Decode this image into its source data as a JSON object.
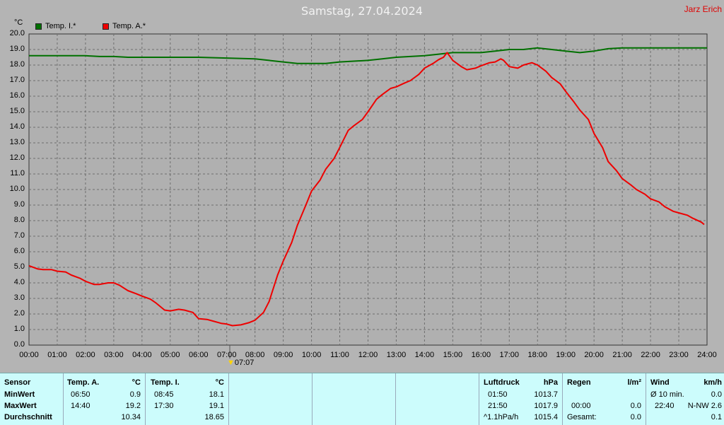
{
  "title": "Samstag, 27.04.2024",
  "author": "Jarz Erich",
  "legend": [
    {
      "label": "Temp. I.*",
      "color": "#007000"
    },
    {
      "label": "Temp. A.*",
      "color": "#ee0000"
    }
  ],
  "sunrise": {
    "time": "07:07"
  },
  "chart_data": {
    "type": "line",
    "title": "Samstag, 27.04.2024",
    "ylabel": "°C",
    "xlabel": "",
    "ylim": [
      0,
      20
    ],
    "xlim_hours": [
      0,
      24
    ],
    "grid": true,
    "y_ticks": [
      "0.0",
      "1.0",
      "2.0",
      "3.0",
      "4.0",
      "5.0",
      "6.0",
      "7.0",
      "8.0",
      "9.0",
      "10.0",
      "11.0",
      "12.0",
      "13.0",
      "14.0",
      "15.0",
      "16.0",
      "17.0",
      "18.0",
      "19.0",
      "20.0"
    ],
    "x_ticks": [
      "00:00",
      "01:00",
      "02:00",
      "03:00",
      "04:00",
      "05:00",
      "06:00",
      "07:00",
      "08:00",
      "09:00",
      "10:00",
      "11:00",
      "12:00",
      "13:00",
      "14:00",
      "15:00",
      "16:00",
      "17:00",
      "18:00",
      "19:00",
      "20:00",
      "21:00",
      "22:00",
      "23:00",
      "24:00"
    ],
    "series": [
      {
        "name": "Temp. I.*",
        "color": "#007000",
        "x": [
          0,
          2,
          2.5,
          3,
          3.5,
          4,
          5,
          6,
          7,
          8,
          8.5,
          9,
          9.5,
          10,
          10.5,
          11,
          12,
          12.5,
          13,
          14,
          14.5,
          15,
          15.5,
          16,
          16.5,
          17,
          17.5,
          18,
          18.5,
          19,
          19.5,
          20,
          20.5,
          21,
          22,
          23,
          24
        ],
        "y": [
          18.6,
          18.6,
          18.55,
          18.55,
          18.5,
          18.5,
          18.5,
          18.5,
          18.45,
          18.4,
          18.3,
          18.2,
          18.1,
          18.1,
          18.1,
          18.2,
          18.3,
          18.4,
          18.5,
          18.6,
          18.7,
          18.8,
          18.8,
          18.8,
          18.9,
          19.0,
          19.0,
          19.1,
          19.0,
          18.9,
          18.8,
          18.9,
          19.05,
          19.1,
          19.1,
          19.1,
          19.1
        ]
      },
      {
        "name": "Temp. A.*",
        "color": "#ee0000",
        "x": [
          0,
          0.3,
          0.5,
          0.8,
          1,
          1.3,
          1.5,
          1.8,
          2,
          2.3,
          2.5,
          2.8,
          3,
          3.2,
          3.5,
          3.8,
          4,
          4.3,
          4.5,
          4.8,
          5,
          5.3,
          5.5,
          5.8,
          6,
          6.3,
          6.5,
          6.8,
          7,
          7.2,
          7.5,
          7.8,
          8,
          8.3,
          8.5,
          8.8,
          9,
          9.3,
          9.5,
          9.8,
          10,
          10.3,
          10.5,
          10.8,
          11,
          11.3,
          11.5,
          11.8,
          12,
          12.3,
          12.5,
          12.8,
          13,
          13.3,
          13.5,
          13.8,
          14,
          14.3,
          14.5,
          14.67,
          14.8,
          15,
          15.3,
          15.5,
          15.8,
          16,
          16.3,
          16.5,
          16.7,
          16.8,
          17,
          17.3,
          17.5,
          17.8,
          18,
          18.3,
          18.5,
          18.8,
          19,
          19.3,
          19.5,
          19.8,
          20,
          20.3,
          20.5,
          20.8,
          21,
          21.3,
          21.5,
          21.8,
          22,
          22.3,
          22.5,
          22.8,
          23,
          23.3,
          23.5,
          23.8,
          23.9
        ],
        "y": [
          5.1,
          4.9,
          4.85,
          4.85,
          4.75,
          4.7,
          4.5,
          4.3,
          4.1,
          3.9,
          3.9,
          4.0,
          4.0,
          3.85,
          3.5,
          3.3,
          3.15,
          2.95,
          2.7,
          2.25,
          2.2,
          2.3,
          2.25,
          2.1,
          1.7,
          1.65,
          1.55,
          1.4,
          1.35,
          1.25,
          1.3,
          1.45,
          1.6,
          2.1,
          2.8,
          4.5,
          5.4,
          6.6,
          7.7,
          9.0,
          9.9,
          10.6,
          11.3,
          12.0,
          12.7,
          13.8,
          14.1,
          14.5,
          15.0,
          15.8,
          16.1,
          16.5,
          16.6,
          16.85,
          17.0,
          17.4,
          17.8,
          18.1,
          18.35,
          18.5,
          18.8,
          18.3,
          17.9,
          17.7,
          17.8,
          17.95,
          18.15,
          18.2,
          18.4,
          18.3,
          17.9,
          17.8,
          18.0,
          18.15,
          18.0,
          17.6,
          17.2,
          16.8,
          16.3,
          15.6,
          15.1,
          14.5,
          13.6,
          12.7,
          11.8,
          11.2,
          10.7,
          10.3,
          10.0,
          9.7,
          9.4,
          9.2,
          8.9,
          8.6,
          8.5,
          8.35,
          8.15,
          7.9,
          7.75
        ]
      }
    ]
  },
  "table": {
    "col1": {
      "header": "Sensor",
      "min": "MinWert",
      "max": "MaxWert",
      "avg": "Durchschnitt"
    },
    "col2": {
      "header": "Temp. A.",
      "unit": "°C",
      "min_time": "06:50",
      "min_val": "0.9",
      "max_time": "14:40",
      "max_val": "19.2",
      "avg_val": "10.34"
    },
    "col3": {
      "header": "Temp. I.",
      "unit": "°C",
      "min_time": "08:45",
      "min_val": "18.1",
      "max_time": "17:30",
      "max_val": "19.1",
      "avg_val": "18.65"
    },
    "col4": {
      "header": "Luftdruck",
      "unit": "hPa",
      "min_time": "01:50",
      "min_val": "1013.7",
      "max_time": "21:50",
      "max_val": "1017.9",
      "avg_label": "^1.1hPa/h",
      "avg_val": "1015.4"
    },
    "col5": {
      "header": "Regen",
      "unit": "l/m²",
      "max_time": "00:00",
      "max_val": "0.0",
      "avg_label": "Gesamt:",
      "avg_val": "0.0"
    },
    "col6": {
      "header": "Wind",
      "unit": "km/h",
      "min_label": "Ø 10 min.",
      "min_val": "0.0",
      "max_time": "22:40",
      "max_val": "N-NW 2.6",
      "avg_val": "0.1"
    }
  }
}
